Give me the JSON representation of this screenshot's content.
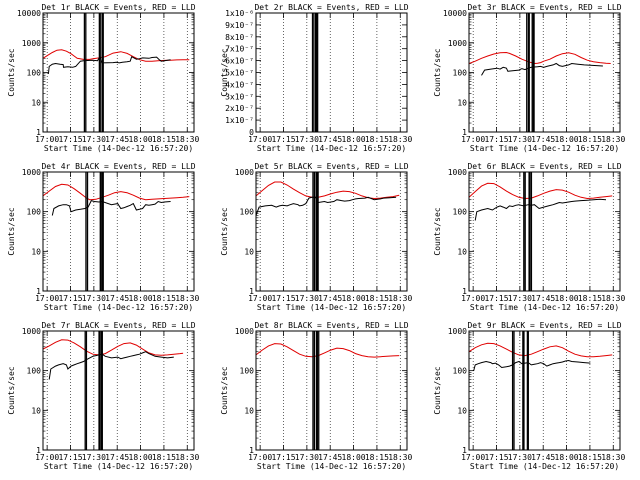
{
  "figure": {
    "xlabel": "Start Time (14-Dec-12 16:57:20)",
    "ylabel": "Counts/sec",
    "x_ticks": [
      "17:00",
      "17:15",
      "17:30",
      "17:45",
      "18:00",
      "18:15",
      "18:30"
    ],
    "colors": {
      "events": "#000000",
      "lld": "#e00000",
      "axis": "#000000"
    }
  },
  "chart_data": [
    {
      "type": "line",
      "title": "Det 1r BLACK = Events, RED = LLD",
      "scale": "log",
      "ylim": [
        1,
        10000
      ],
      "yticks": [
        1,
        10,
        100,
        1000,
        10000
      ],
      "series": [
        {
          "name": "LLD",
          "x": [
            0,
            3,
            6,
            9,
            12,
            15,
            18,
            20,
            22,
            26,
            30,
            32,
            36,
            40,
            45,
            50,
            54,
            58,
            62,
            66,
            70,
            74,
            78,
            82,
            86,
            90,
            94
          ],
          "y": [
            300,
            380,
            470,
            560,
            580,
            520,
            430,
            360,
            300,
            275,
            275,
            290,
            310,
            340,
            450,
            500,
            440,
            340,
            270,
            240,
            240,
            250,
            255,
            260,
            265,
            268,
            270
          ]
        },
        {
          "name": "Events",
          "x": [
            3.5,
            4,
            6,
            8,
            11,
            13,
            13.2,
            16,
            19,
            21,
            24,
            26,
            30,
            32,
            35,
            36.5,
            38,
            45,
            47,
            49,
            51,
            54,
            56,
            57,
            60,
            62,
            64,
            68,
            70,
            73,
            75,
            76,
            78,
            80,
            82
          ],
          "y": [
            90,
            160,
            190,
            200,
            190,
            185,
            150,
            155,
            150,
            160,
            240,
            250,
            255,
            260,
            250,
            330,
            210,
            215,
            220,
            210,
            220,
            230,
            240,
            340,
            280,
            290,
            310,
            300,
            320,
            330,
            260,
            240,
            250,
            260,
            270
          ]
        }
      ],
      "vlines": [
        26.6,
        27.5,
        36.2,
        37.1,
        38.2,
        38.7
      ]
    },
    {
      "type": "line",
      "title": "Det 2r BLACK = Events, RED = LLD",
      "scale": "linear",
      "ylim": [
        0,
        1e-06
      ],
      "ytick_labels": [
        "0",
        "1x10⁻⁷",
        "2x10⁻⁷",
        "3x10⁻⁷",
        "4x10⁻⁷",
        "5x10⁻⁷",
        "6x10⁻⁷",
        "7x10⁻⁷",
        "8x10⁻⁷",
        "9x10⁻⁷",
        "1x10⁻⁶"
      ],
      "series": [],
      "vlines": [
        36.3,
        37.2,
        38.3,
        38.8,
        39.6
      ]
    },
    {
      "type": "line",
      "title": "Det 3r BLACK = Events, RED = LLD",
      "scale": "log",
      "ylim": [
        1,
        10000
      ],
      "yticks": [
        1,
        10,
        100,
        1000,
        10000
      ],
      "series": [
        {
          "name": "LLD",
          "x": [
            0,
            4,
            8,
            12,
            16,
            20,
            24,
            26,
            30,
            34,
            38,
            42,
            44,
            46,
            48,
            52,
            56,
            60,
            64,
            68,
            72,
            76,
            80,
            84,
            88,
            91
          ],
          "y": [
            200,
            240,
            300,
            360,
            420,
            460,
            470,
            440,
            360,
            280,
            230,
            200,
            205,
            215,
            240,
            280,
            360,
            430,
            460,
            410,
            320,
            260,
            230,
            215,
            205,
            200
          ]
        },
        {
          "name": "Events",
          "x": [
            8,
            10,
            14,
            18,
            20,
            22,
            24,
            25,
            28,
            32,
            34,
            36,
            38,
            40,
            44,
            46,
            48,
            50,
            52,
            54,
            56,
            58,
            60,
            62,
            64,
            66,
            70,
            74,
            78,
            82,
            86
          ],
          "y": [
            80,
            120,
            130,
            140,
            130,
            150,
            140,
            110,
            115,
            120,
            135,
            125,
            140,
            150,
            155,
            160,
            150,
            160,
            170,
            180,
            200,
            170,
            160,
            170,
            180,
            200,
            190,
            180,
            175,
            170,
            165
          ]
        }
      ],
      "vlines": [
        37.1,
        38.2,
        38.7,
        40.6,
        41.3,
        41.8
      ]
    },
    {
      "type": "line",
      "title": "Det 4r BLACK = Events, RED = LLD",
      "scale": "log",
      "ylim": [
        1,
        1000
      ],
      "yticks": [
        1,
        10,
        100,
        1000
      ],
      "series": [
        {
          "name": "LLD",
          "x": [
            0,
            4,
            8,
            12,
            16,
            20,
            24,
            28,
            30,
            34,
            38,
            42,
            46,
            50,
            54,
            58,
            62,
            66,
            70,
            74,
            78,
            82,
            86,
            90,
            94
          ],
          "y": [
            250,
            330,
            430,
            490,
            470,
            380,
            290,
            220,
            200,
            205,
            230,
            260,
            300,
            320,
            300,
            260,
            220,
            200,
            205,
            210,
            215,
            220,
            225,
            230,
            240
          ]
        },
        {
          "name": "Events",
          "x": [
            6,
            7,
            10,
            13,
            15,
            17,
            18,
            21,
            24,
            27,
            29,
            31,
            33,
            36,
            38,
            44,
            46,
            48,
            50,
            52,
            54,
            56,
            58,
            60,
            62,
            64,
            66,
            68,
            70,
            72,
            74,
            76,
            78,
            82
          ],
          "y": [
            80,
            120,
            140,
            150,
            150,
            140,
            100,
            110,
            115,
            120,
            130,
            190,
            180,
            175,
            180,
            150,
            155,
            160,
            120,
            125,
            135,
            145,
            160,
            110,
            115,
            120,
            150,
            145,
            150,
            155,
            180,
            170,
            175,
            180
          ]
        }
      ],
      "vlines": [
        27.6,
        28.6,
        36.8,
        37.4,
        38.2,
        38.7
      ]
    },
    {
      "type": "line",
      "title": "Det 5r BLACK = Events, RED = LLD",
      "scale": "log",
      "ylim": [
        1,
        1000
      ],
      "yticks": [
        1,
        10,
        100,
        1000
      ],
      "series": [
        {
          "name": "LLD",
          "x": [
            0,
            4,
            8,
            12,
            16,
            20,
            24,
            28,
            32,
            36,
            40,
            44,
            48,
            52,
            56,
            60,
            64,
            68,
            72,
            76,
            80,
            84,
            88,
            92
          ],
          "y": [
            250,
            340,
            460,
            560,
            560,
            470,
            370,
            300,
            250,
            230,
            230,
            250,
            280,
            310,
            330,
            320,
            290,
            250,
            225,
            215,
            220,
            230,
            240,
            260
          ]
        },
        {
          "name": "Events",
          "x": [
            0,
            2,
            6,
            10,
            13,
            15,
            17,
            20,
            22,
            24,
            27,
            28,
            30,
            32,
            34,
            36,
            38,
            40,
            42,
            44,
            46,
            48,
            50,
            52,
            55,
            57,
            60,
            62,
            64,
            66,
            70,
            72,
            74,
            76,
            78,
            80,
            82,
            86,
            90
          ],
          "y": [
            80,
            130,
            140,
            145,
            130,
            140,
            145,
            140,
            150,
            160,
            150,
            140,
            145,
            160,
            220,
            230,
            230,
            170,
            175,
            180,
            170,
            175,
            180,
            200,
            190,
            185,
            190,
            200,
            210,
            215,
            220,
            230,
            215,
            200,
            205,
            210,
            220,
            225,
            230
          ]
        }
      ],
      "vlines": [
        36.6,
        37.5,
        38.6,
        39.1,
        39.9
      ]
    },
    {
      "type": "line",
      "title": "Det 6r BLACK = Events, RED = LLD",
      "scale": "log",
      "ylim": [
        1,
        1000
      ],
      "yticks": [
        1,
        10,
        100,
        1000
      ],
      "series": [
        {
          "name": "LLD",
          "x": [
            0,
            4,
            8,
            12,
            16,
            20,
            24,
            28,
            32,
            36,
            40,
            44,
            48,
            52,
            56,
            60,
            64,
            68,
            72,
            76,
            80,
            84,
            88,
            92
          ],
          "y": [
            230,
            320,
            440,
            520,
            510,
            420,
            330,
            270,
            230,
            215,
            220,
            250,
            290,
            330,
            360,
            350,
            310,
            260,
            230,
            215,
            220,
            230,
            240,
            250
          ]
        },
        {
          "name": "Events",
          "x": [
            4,
            5,
            8,
            12,
            15,
            18,
            20,
            22,
            24,
            26,
            28,
            30,
            32,
            35,
            38,
            40,
            42,
            45,
            48,
            51,
            54,
            56,
            58,
            60,
            62,
            64,
            66,
            68,
            72,
            76,
            80,
            84,
            88
          ],
          "y": [
            60,
            100,
            110,
            120,
            110,
            130,
            140,
            130,
            120,
            140,
            135,
            145,
            150,
            140,
            150,
            145,
            150,
            120,
            130,
            140,
            150,
            160,
            170,
            165,
            170,
            175,
            180,
            185,
            190,
            195,
            200,
            205,
            200
          ]
        }
      ],
      "vlines": [
        35.2,
        36.1,
        38.6,
        39.2,
        40.1
      ]
    },
    {
      "type": "line",
      "title": "Det 7r BLACK = Events, RED = LLD",
      "scale": "log",
      "ylim": [
        1,
        1000
      ],
      "yticks": [
        1,
        10,
        100,
        1000
      ],
      "series": [
        {
          "name": "LLD",
          "x": [
            0,
            4,
            8,
            12,
            16,
            20,
            24,
            28,
            32,
            36,
            40,
            44,
            48,
            52,
            56,
            60,
            64,
            68,
            72,
            76,
            80,
            84,
            88,
            90
          ],
          "y": [
            350,
            420,
            520,
            600,
            590,
            500,
            400,
            310,
            260,
            250,
            270,
            330,
            410,
            480,
            500,
            440,
            350,
            280,
            250,
            245,
            250,
            260,
            270,
            275
          ]
        },
        {
          "name": "Events",
          "x": [
            4,
            5,
            8,
            10,
            13,
            15,
            16,
            18,
            20,
            22,
            24,
            26,
            28,
            30,
            32,
            34,
            36,
            38,
            40,
            44,
            48,
            50,
            52,
            54,
            56,
            58,
            60,
            62,
            64,
            66,
            68,
            72,
            76,
            80,
            84
          ],
          "y": [
            60,
            110,
            130,
            140,
            150,
            140,
            110,
            130,
            140,
            150,
            160,
            170,
            190,
            210,
            230,
            240,
            250,
            260,
            230,
            210,
            220,
            200,
            210,
            220,
            230,
            240,
            250,
            260,
            280,
            300,
            270,
            230,
            220,
            210,
            220
          ]
        }
      ],
      "vlines": [
        27.1,
        27.9,
        36.0,
        36.7,
        37.6,
        38.1
      ]
    },
    {
      "type": "line",
      "title": "Det 8r BLACK = Events, RED = LLD",
      "scale": "log",
      "ylim": [
        1,
        1000
      ],
      "yticks": [
        1,
        10,
        100,
        1000
      ],
      "series": [
        {
          "name": "LLD",
          "x": [
            0,
            4,
            8,
            12,
            16,
            20,
            24,
            28,
            32,
            36,
            40,
            44,
            48,
            52,
            56,
            60,
            64,
            68,
            72,
            76,
            80,
            84,
            88,
            92
          ],
          "y": [
            250,
            330,
            420,
            480,
            470,
            400,
            320,
            260,
            230,
            225,
            240,
            280,
            330,
            370,
            360,
            320,
            270,
            240,
            225,
            220,
            225,
            230,
            235,
            240
          ]
        }
      ],
      "vlines": [
        36.6,
        37.5,
        38.8,
        39.4,
        40.3
      ]
    },
    {
      "type": "line",
      "title": "Det 9r BLACK = Events, RED = LLD",
      "scale": "log",
      "ylim": [
        1,
        1000
      ],
      "yticks": [
        1,
        10,
        100,
        1000
      ],
      "series": [
        {
          "name": "LLD",
          "x": [
            0,
            4,
            8,
            12,
            16,
            20,
            24,
            28,
            32,
            36,
            40,
            44,
            48,
            52,
            56,
            60,
            64,
            68,
            72,
            76,
            80,
            84,
            88,
            92
          ],
          "y": [
            300,
            380,
            450,
            490,
            480,
            420,
            350,
            290,
            250,
            240,
            260,
            300,
            350,
            400,
            420,
            380,
            310,
            260,
            235,
            225,
            225,
            230,
            240,
            250
          ]
        },
        {
          "name": "Events",
          "x": [
            3,
            4,
            6,
            8,
            11,
            14,
            15,
            17,
            19,
            21,
            24,
            26,
            28,
            30,
            32,
            34,
            36,
            38,
            40,
            42,
            44,
            46,
            48,
            50,
            52,
            54,
            56,
            58,
            60,
            62,
            64,
            66,
            70,
            74,
            78
          ],
          "y": [
            100,
            140,
            150,
            160,
            170,
            160,
            150,
            155,
            140,
            120,
            125,
            130,
            140,
            160,
            170,
            150,
            155,
            160,
            140,
            145,
            150,
            160,
            150,
            130,
            140,
            150,
            155,
            160,
            165,
            175,
            180,
            170,
            165,
            160,
            155
          ]
        }
      ],
      "vlines": [
        28.0,
        28.9,
        34.6,
        35.3,
        37.5,
        38.1
      ]
    }
  ]
}
